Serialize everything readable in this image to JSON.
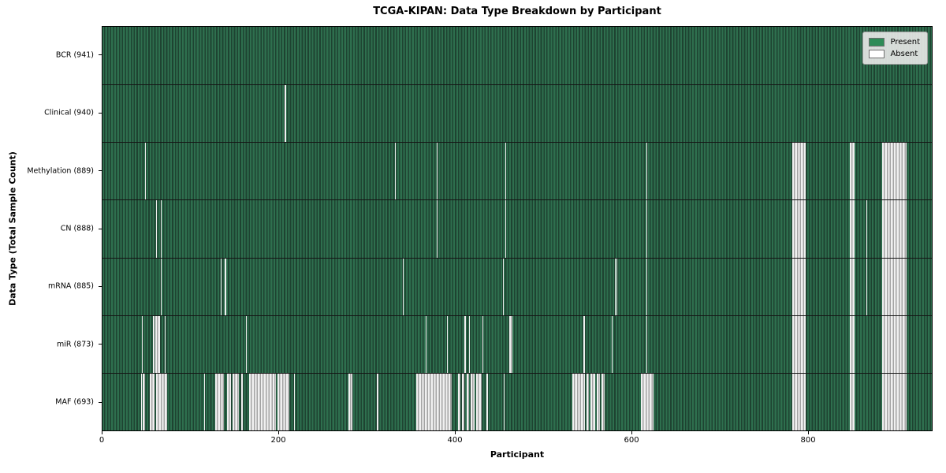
{
  "title": "TCGA-KIPAN: Data Type Breakdown by Participant",
  "colors": {
    "present_green": "#2e8b57",
    "present_fill_light": "#2e6f4e",
    "present_fill_dark": "#1e4331",
    "absent_white": "#ffffff",
    "absent_stripe_gray": "#a3a3a3",
    "legend_bg": "#eaeaea",
    "axis_black": "#000000"
  },
  "legend_items": [
    {
      "label": "Present",
      "color": "#2e8b57"
    },
    {
      "label": "Absent",
      "color": "#ffffff"
    }
  ],
  "chart_data": {
    "type": "heatmap",
    "title": "TCGA-KIPAN: Data Type Breakdown by Participant",
    "xlabel": "Participant",
    "ylabel": "Data Type (Total Sample Count)",
    "legend": [
      "Present",
      "Absent"
    ],
    "legend_position": "upper right",
    "grid": false,
    "n_participants": 941,
    "x_range": [
      0,
      941
    ],
    "x_ticks": [
      0,
      200,
      400,
      600,
      800
    ],
    "encoding": "absent_ranges are inclusive [start,end] participant indices where the data type is missing; all other participants are Present",
    "rows": [
      {
        "name": "BCR",
        "label": "BCR (941)",
        "present_count": 941,
        "absent_count": 0,
        "absent_ranges": []
      },
      {
        "name": "Clinical",
        "label": "Clinical (940)",
        "present_count": 940,
        "absent_count": 1,
        "absent_ranges": [
          [
            207,
            207
          ]
        ]
      },
      {
        "name": "Methylation",
        "label": "Methylation (889)",
        "present_count": 889,
        "absent_count": 52,
        "absent_ranges": [
          [
            48,
            48
          ],
          [
            332,
            332
          ],
          [
            379,
            379
          ],
          [
            457,
            457
          ],
          [
            617,
            617
          ],
          [
            783,
            797
          ],
          [
            848,
            852
          ],
          [
            885,
            911
          ]
        ]
      },
      {
        "name": "CN",
        "label": "CN (888)",
        "present_count": 888,
        "absent_count": 53,
        "absent_ranges": [
          [
            61,
            61
          ],
          [
            66,
            66
          ],
          [
            379,
            379
          ],
          [
            457,
            457
          ],
          [
            617,
            617
          ],
          [
            783,
            797
          ],
          [
            848,
            852
          ],
          [
            867,
            867
          ],
          [
            885,
            911
          ]
        ]
      },
      {
        "name": "mRNA",
        "label": "mRNA (885)",
        "present_count": 885,
        "absent_count": 56,
        "absent_ranges": [
          [
            66,
            66
          ],
          [
            134,
            134
          ],
          [
            139,
            139
          ],
          [
            341,
            341
          ],
          [
            454,
            454
          ],
          [
            581,
            581
          ],
          [
            583,
            583
          ],
          [
            617,
            617
          ],
          [
            783,
            797
          ],
          [
            848,
            852
          ],
          [
            867,
            867
          ],
          [
            885,
            911
          ]
        ]
      },
      {
        "name": "miR",
        "label": "miR (873)",
        "present_count": 873,
        "absent_count": 68,
        "absent_ranges": [
          [
            45,
            45
          ],
          [
            57,
            58
          ],
          [
            60,
            64
          ],
          [
            71,
            71
          ],
          [
            163,
            163
          ],
          [
            367,
            367
          ],
          [
            391,
            391
          ],
          [
            411,
            411
          ],
          [
            416,
            416
          ],
          [
            431,
            431
          ],
          [
            462,
            464
          ],
          [
            546,
            546
          ],
          [
            578,
            578
          ],
          [
            617,
            617
          ],
          [
            783,
            797
          ],
          [
            848,
            852
          ],
          [
            885,
            911
          ]
        ]
      },
      {
        "name": "MAF",
        "label": "MAF (693)",
        "present_count": 693,
        "absent_count": 248,
        "absent_ranges": [
          [
            44,
            44
          ],
          [
            46,
            47
          ],
          [
            54,
            58
          ],
          [
            61,
            72
          ],
          [
            115,
            115
          ],
          [
            128,
            137
          ],
          [
            141,
            145
          ],
          [
            148,
            154
          ],
          [
            157,
            158
          ],
          [
            166,
            196
          ],
          [
            199,
            211
          ],
          [
            217,
            217
          ],
          [
            279,
            283
          ],
          [
            311,
            312
          ],
          [
            356,
            395
          ],
          [
            403,
            405
          ],
          [
            408,
            410
          ],
          [
            413,
            415
          ],
          [
            418,
            421
          ],
          [
            424,
            429
          ],
          [
            436,
            436
          ],
          [
            455,
            455
          ],
          [
            533,
            546
          ],
          [
            549,
            551
          ],
          [
            554,
            558
          ],
          [
            561,
            563
          ],
          [
            566,
            569
          ],
          [
            611,
            624
          ],
          [
            783,
            797
          ],
          [
            848,
            852
          ],
          [
            885,
            911
          ]
        ]
      }
    ]
  }
}
